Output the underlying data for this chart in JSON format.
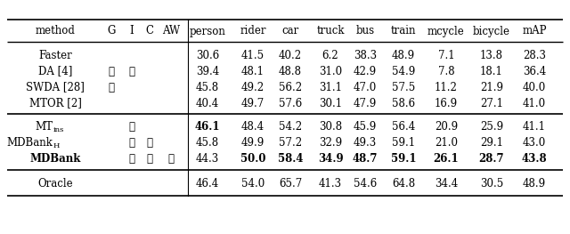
{
  "col_headers": [
    "method",
    "G",
    "I",
    "C",
    "AW",
    "person",
    "rider",
    "car",
    "truck",
    "bus",
    "train",
    "mcycle",
    "bicycle",
    "mAP"
  ],
  "rows": [
    {
      "method": "Faster",
      "checks": [
        "",
        "",
        "",
        ""
      ],
      "values": [
        "30.6",
        "41.5",
        "40.2",
        "6.2",
        "38.3",
        "48.9",
        "7.1",
        "13.8",
        "28.3"
      ],
      "bold": [
        false,
        false,
        false,
        false,
        false,
        false,
        false,
        false,
        false
      ]
    },
    {
      "method": "DA [4]",
      "checks": [
        "✓",
        "✓",
        "",
        ""
      ],
      "values": [
        "39.4",
        "48.1",
        "48.8",
        "31.0",
        "42.9",
        "54.9",
        "7.8",
        "18.1",
        "36.4"
      ],
      "bold": [
        false,
        false,
        false,
        false,
        false,
        false,
        false,
        false,
        false
      ]
    },
    {
      "method": "SWDA [28]",
      "checks": [
        "✓",
        "",
        "",
        ""
      ],
      "values": [
        "45.8",
        "49.2",
        "56.2",
        "31.1",
        "47.0",
        "57.5",
        "11.2",
        "21.9",
        "40.0"
      ],
      "bold": [
        false,
        false,
        false,
        false,
        false,
        false,
        false,
        false,
        false
      ]
    },
    {
      "method": "MTOR [2]",
      "checks": [
        "",
        "",
        "",
        ""
      ],
      "values": [
        "40.4",
        "49.7",
        "57.6",
        "30.1",
        "47.9",
        "58.6",
        "16.9",
        "27.1",
        "41.0"
      ],
      "bold": [
        false,
        false,
        false,
        false,
        false,
        false,
        false,
        false,
        false
      ]
    },
    {
      "method": "MT_ins",
      "checks": [
        "",
        "✓",
        "",
        ""
      ],
      "values": [
        "46.1",
        "48.4",
        "54.2",
        "30.8",
        "45.9",
        "56.4",
        "20.9",
        "25.9",
        "41.1"
      ],
      "bold": [
        true,
        false,
        false,
        false,
        false,
        false,
        false,
        false,
        false
      ]
    },
    {
      "method": "MDBank_H",
      "checks": [
        "",
        "✓",
        "✓",
        ""
      ],
      "values": [
        "45.8",
        "49.9",
        "57.2",
        "32.9",
        "49.3",
        "59.1",
        "21.0",
        "29.1",
        "43.0"
      ],
      "bold": [
        false,
        false,
        false,
        false,
        false,
        false,
        false,
        false,
        false
      ]
    },
    {
      "method": "MDBank",
      "checks": [
        "",
        "✓",
        "✓",
        "✓"
      ],
      "values": [
        "44.3",
        "50.0",
        "58.4",
        "34.9",
        "48.7",
        "59.1",
        "26.1",
        "28.7",
        "43.8"
      ],
      "bold": [
        false,
        true,
        true,
        true,
        true,
        true,
        true,
        true,
        true
      ]
    },
    {
      "method": "Oracle",
      "checks": [
        "",
        "",
        "",
        ""
      ],
      "values": [
        "46.4",
        "54.0",
        "65.7",
        "41.3",
        "54.6",
        "64.8",
        "34.4",
        "30.5",
        "48.9"
      ],
      "bold": [
        false,
        false,
        false,
        false,
        false,
        false,
        false,
        false,
        false
      ]
    }
  ],
  "bg_color": "white",
  "font_size": 8.5
}
